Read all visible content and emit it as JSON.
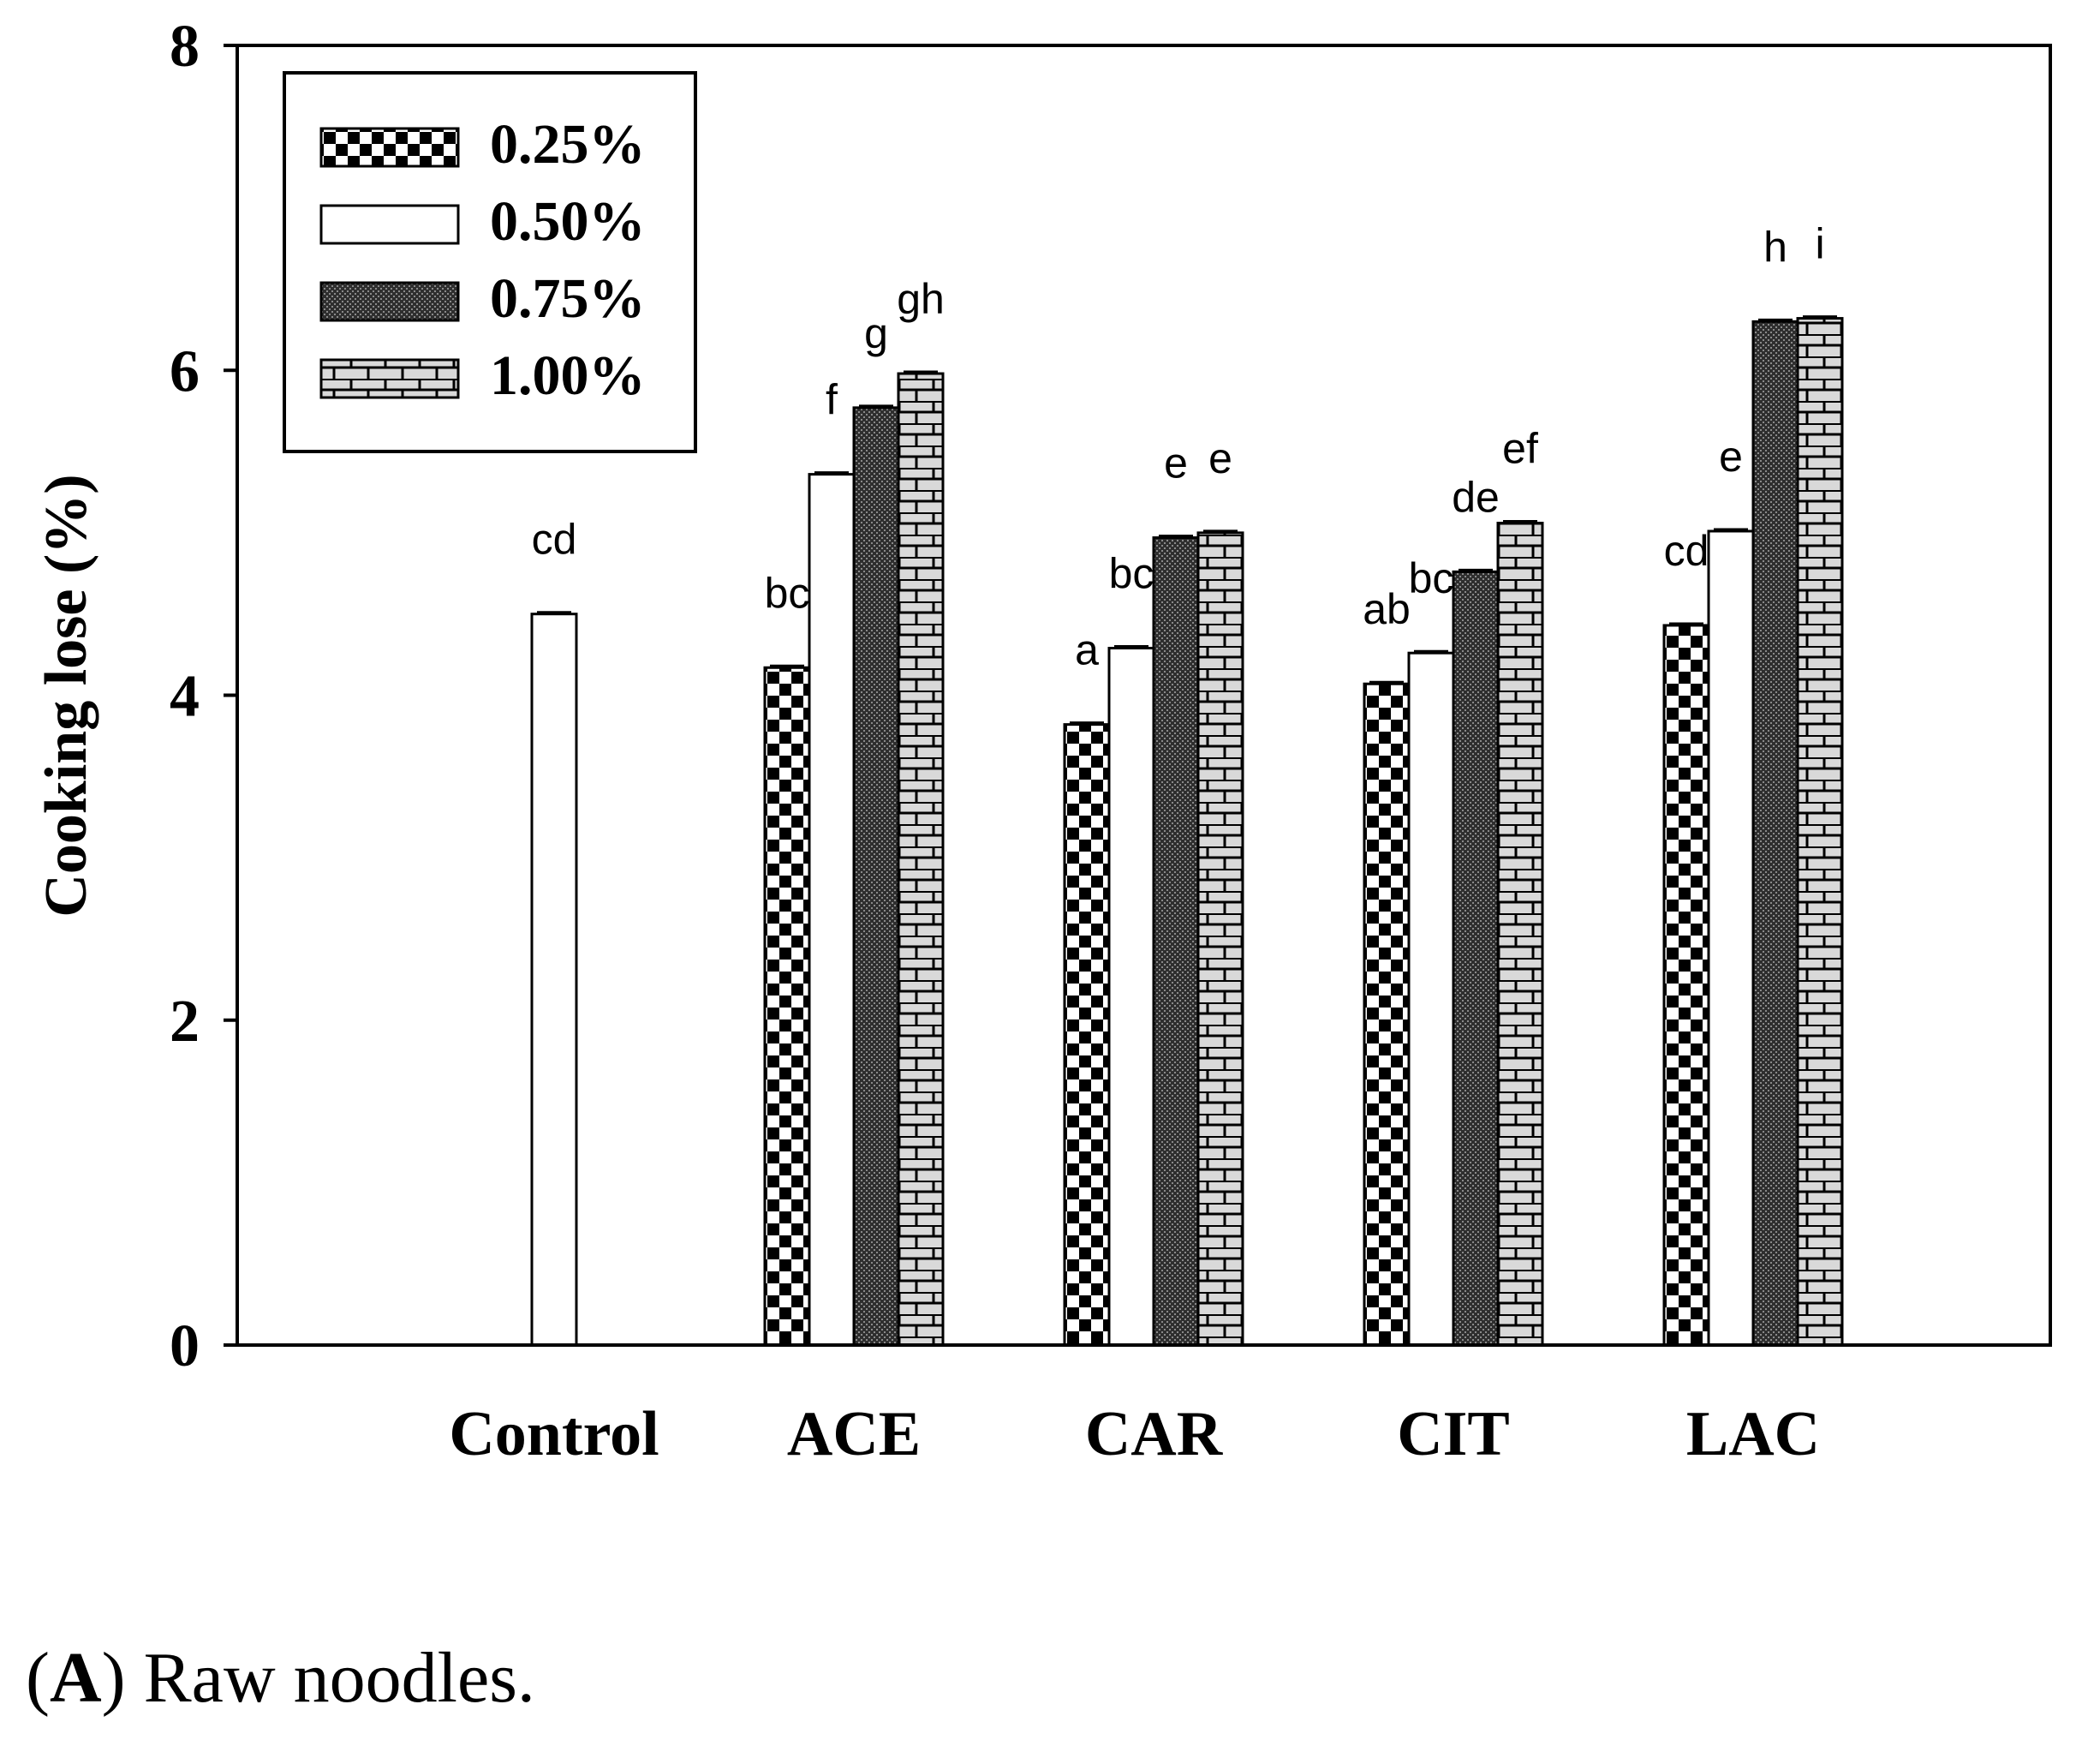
{
  "chart_data": {
    "type": "bar",
    "xlabel": "",
    "ylabel": "Cooking lose (%)",
    "ylim": [
      0,
      8
    ],
    "yticks": [
      "0",
      "2",
      "4",
      "6",
      "8"
    ],
    "legend_position": "top-left",
    "categories": [
      "Control",
      "ACE",
      "CAR",
      "CIT",
      "LAC"
    ],
    "series": [
      {
        "name": "0.25%",
        "pattern": "checker",
        "values": [
          null,
          4.17,
          3.82,
          4.07,
          4.43
        ],
        "letters": [
          null,
          "bc",
          "a",
          "ab",
          "cd"
        ]
      },
      {
        "name": "0.50%",
        "pattern": "white",
        "values": [
          4.5,
          5.36,
          4.29,
          4.26,
          5.01
        ],
        "letters": [
          "cd",
          "f",
          "bc",
          "bc",
          "e"
        ]
      },
      {
        "name": "0.75%",
        "pattern": "dark-dots",
        "values": [
          null,
          5.77,
          4.97,
          4.76,
          6.3
        ],
        "letters": [
          null,
          "g",
          "e",
          "de",
          "h"
        ]
      },
      {
        "name": "1.00%",
        "pattern": "brick",
        "values": [
          null,
          5.98,
          5.0,
          5.06,
          6.32
        ],
        "letters": [
          null,
          "gh",
          "e",
          "ef",
          "i"
        ]
      }
    ]
  },
  "caption": {
    "letter": "A",
    "text": "Raw noodles."
  }
}
